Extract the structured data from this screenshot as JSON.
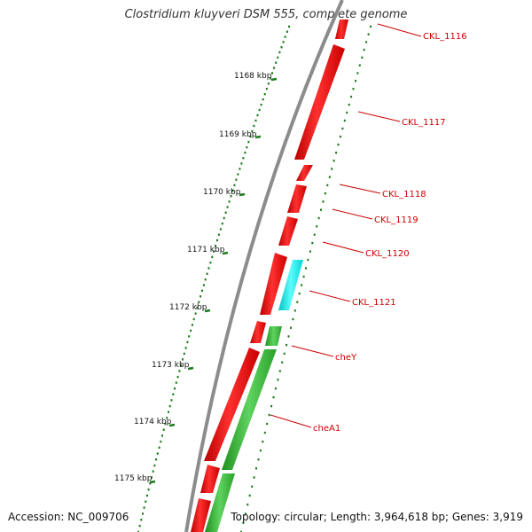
{
  "title": "Clostridium kluyveri DSM 555, complete genome",
  "footer": {
    "accession": "Accession: NC_009706",
    "summary": "Topology: circular; Length: 3,964,618 bp; Genes: 3,919"
  },
  "colors": {
    "background": "#ffffff",
    "backbone": "#8c8c8c",
    "gene_reverse": "#ee0000",
    "gene_forward": "#33bb33",
    "gene_highlight": "#00e5e5",
    "tick": "#1a7a1a",
    "label": "#cc0000",
    "label_line": "#cc0000",
    "scale_text": "#111111"
  },
  "scale_labels": [
    "1168 kbp",
    "1169 kbp",
    "1170 kbp",
    "1171 kbp",
    "1172 kbp",
    "1173 kbp",
    "1174 kbp",
    "1175 kbp"
  ],
  "gene_labels": [
    "CKL_1116",
    "CKL_1117",
    "CKL_1118",
    "CKL_1119",
    "CKL_1120",
    "CKL_1121",
    "cheY",
    "cheA1"
  ]
}
